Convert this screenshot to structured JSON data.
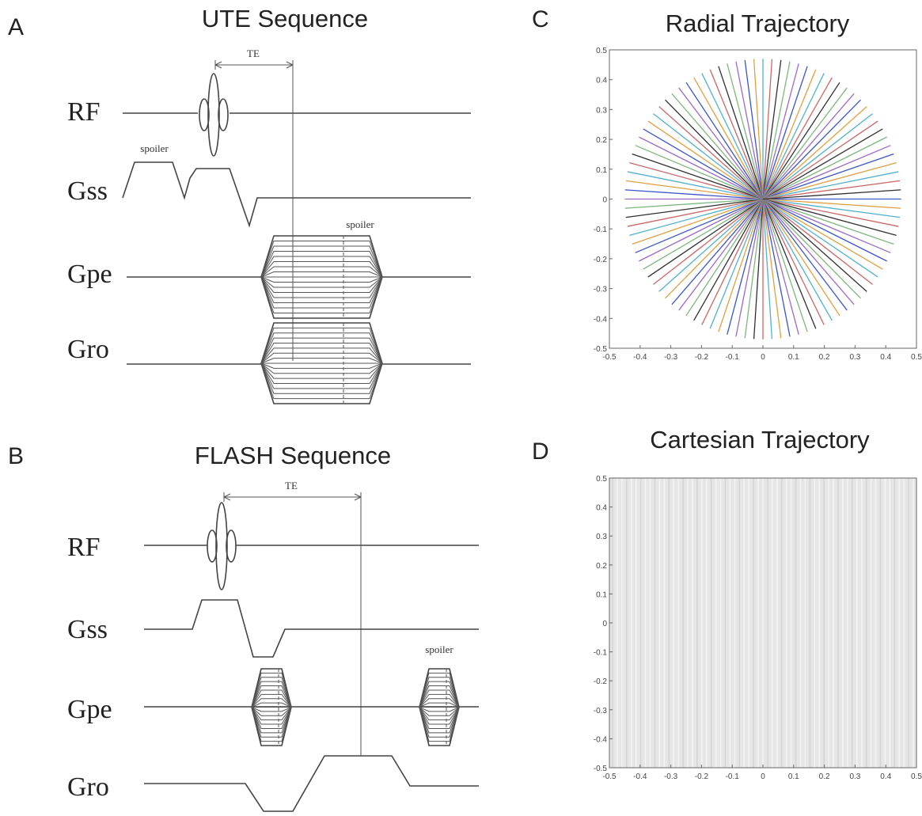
{
  "panels": [
    {
      "label": "A",
      "title": "UTE Sequence",
      "te": "TE",
      "spoilers": [
        "spoiler",
        "spoiler"
      ],
      "rows": [
        "RF",
        "Gss",
        "Gpe",
        "Gro"
      ]
    },
    {
      "label": "B",
      "title": "FLASH Sequence",
      "te": "TE",
      "spoilers": [
        "spoiler"
      ],
      "rows": [
        "RF",
        "Gss",
        "Gpe",
        "Gro"
      ]
    }
  ],
  "plots": [
    {
      "label": "C",
      "title": "Radial Trajectory",
      "kind": "radial",
      "xlim": [
        -0.5,
        0.5
      ],
      "ylim": [
        -0.5,
        0.5
      ],
      "xticks": [
        -0.5,
        -0.4,
        -0.3,
        -0.2,
        -0.1,
        0,
        0.1,
        0.2,
        0.3,
        0.4,
        0.5
      ],
      "yticks": [
        -0.5,
        -0.4,
        -0.3,
        -0.2,
        -0.1,
        0,
        0.1,
        0.2,
        0.3,
        0.4,
        0.5
      ]
    },
    {
      "label": "D",
      "title": "Cartesian Trajectory",
      "kind": "cartesian",
      "xlim": [
        -0.5,
        0.5
      ],
      "ylim": [
        -0.5,
        0.5
      ],
      "xticks": [
        -0.5,
        -0.4,
        -0.3,
        -0.2,
        -0.1,
        0,
        0.1,
        0.2,
        0.3,
        0.4,
        0.5
      ],
      "yticks": [
        -0.5,
        -0.4,
        -0.3,
        -0.2,
        -0.1,
        0,
        0.1,
        0.2,
        0.3,
        0.4,
        0.5
      ]
    }
  ]
}
